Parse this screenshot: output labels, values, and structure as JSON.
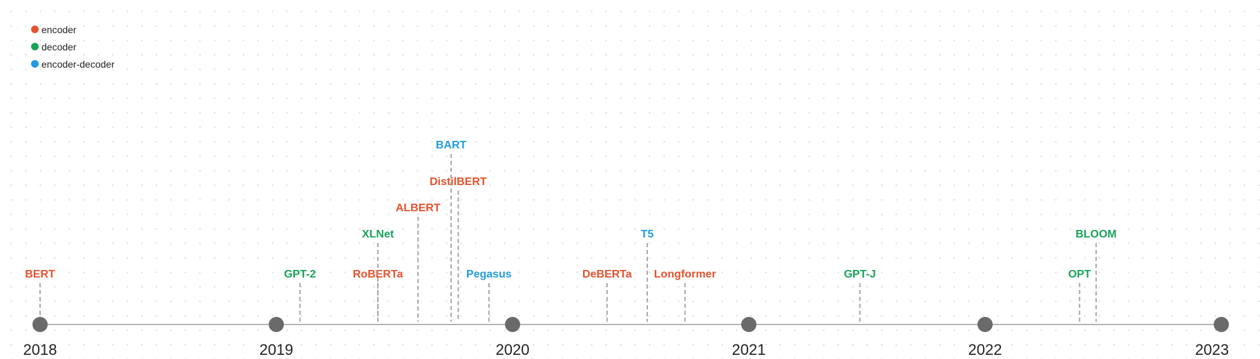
{
  "legend": [
    {
      "label": "encoder",
      "type": "encoder"
    },
    {
      "label": "decoder",
      "type": "decoder"
    },
    {
      "label": "encoder-decoder",
      "type": "encoder-decoder"
    }
  ],
  "colors": {
    "encoder": "#e4532f",
    "decoder": "#1aa25a",
    "encoder-decoder": "#229be0",
    "axis": "#b5b5b5",
    "year_marker": "#6a6a6a",
    "connector": "#a8a8a8"
  },
  "timeline": {
    "years": [
      "2018",
      "2019",
      "2020",
      "2021",
      "2022",
      "2023"
    ],
    "models": [
      {
        "name": "BERT",
        "type": "encoder",
        "date": 2018.0,
        "level": 0
      },
      {
        "name": "GPT-2",
        "type": "decoder",
        "date": 2019.1,
        "level": 0
      },
      {
        "name": "RoBERTa",
        "type": "encoder",
        "date": 2019.43,
        "level": 0
      },
      {
        "name": "XLNet",
        "type": "decoder",
        "date": 2019.43,
        "level": 1
      },
      {
        "name": "ALBERT",
        "type": "encoder",
        "date": 2019.6,
        "level": 2
      },
      {
        "name": "DistilBERT",
        "type": "encoder",
        "date": 2019.77,
        "level": 3
      },
      {
        "name": "BART",
        "type": "encoder-decoder",
        "date": 2019.74,
        "level": 4
      },
      {
        "name": "Pegasus",
        "type": "encoder-decoder",
        "date": 2019.9,
        "level": 0
      },
      {
        "name": "DeBERTa",
        "type": "encoder",
        "date": 2020.4,
        "level": 0
      },
      {
        "name": "T5",
        "type": "encoder-decoder",
        "date": 2020.57,
        "level": 1
      },
      {
        "name": "Longformer",
        "type": "encoder",
        "date": 2020.73,
        "level": 0
      },
      {
        "name": "GPT-J",
        "type": "decoder",
        "date": 2021.47,
        "level": 0
      },
      {
        "name": "OPT",
        "type": "decoder",
        "date": 2022.4,
        "level": 0
      },
      {
        "name": "BLOOM",
        "type": "decoder",
        "date": 2022.47,
        "level": 1
      }
    ]
  }
}
